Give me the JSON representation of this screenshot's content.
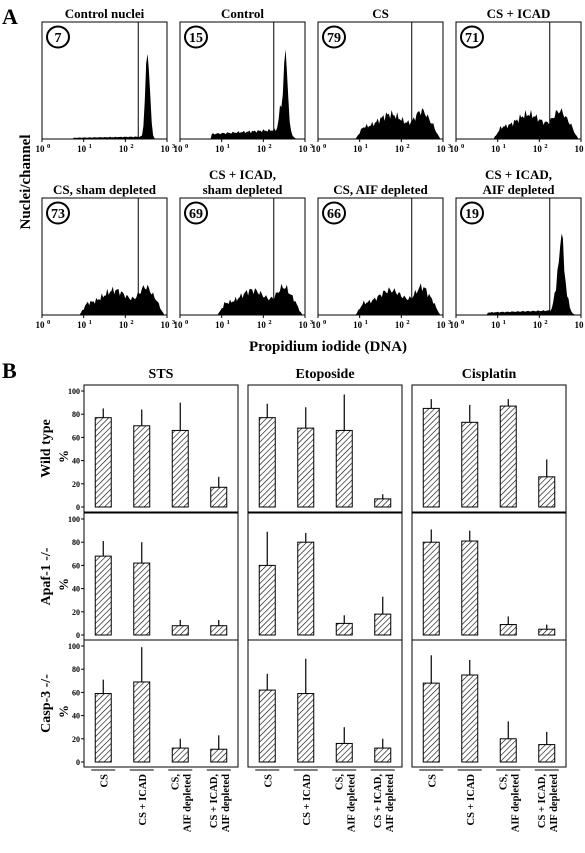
{
  "panel_a_letter": "A",
  "panel_b_letter": "B",
  "panel_a": {
    "ylabel": "Nuclei/channel",
    "xlabel": "Propidium iodide (DNA)",
    "x_ticks": [
      {
        "base": "10",
        "exp": "0"
      },
      {
        "base": "10",
        "exp": "1"
      },
      {
        "base": "10",
        "exp": "2"
      },
      {
        "base": "10",
        "exp": "3"
      }
    ]
  },
  "panel_b": {
    "ylabel_unit": "%",
    "y_ticks": [
      "0",
      "20",
      "40",
      "60",
      "80",
      "100"
    ],
    "categories": [
      "CS",
      "CS + ICAD",
      "CS, AIF depleted",
      "CS + ICAD, AIF depleted"
    ]
  },
  "chart_data": [
    {
      "type": "histogram",
      "xscale": "log",
      "xlim": [
        1,
        1000
      ],
      "xlabel": "Propidium iodide (DNA)",
      "ylabel": "Nuclei/channel",
      "panels": [
        {
          "title": [
            "Control nuclei"
          ],
          "circled_value": 7,
          "profile": "normal"
        },
        {
          "title": [
            "Control"
          ],
          "circled_value": 15,
          "profile": "normal_tail"
        },
        {
          "title": [
            "CS"
          ],
          "circled_value": 79,
          "profile": "hypodiploid"
        },
        {
          "title": [
            "CS + ICAD"
          ],
          "circled_value": 71,
          "profile": "hypodiploid"
        },
        {
          "title": [
            "CS, sham depleted"
          ],
          "circled_value": 73,
          "profile": "hypodiploid"
        },
        {
          "title": [
            "CS + ICAD,",
            "sham depleted"
          ],
          "circled_value": 69,
          "profile": "hypodiploid"
        },
        {
          "title": [
            "CS,  AIF depleted"
          ],
          "circled_value": 66,
          "profile": "hypodiploid"
        },
        {
          "title": [
            "CS + ICAD,",
            "AIF depleted"
          ],
          "circled_value": 19,
          "profile": "recovered"
        }
      ]
    },
    {
      "type": "bar",
      "ylabel": "%",
      "ylim": [
        0,
        100
      ],
      "categories": [
        "CS",
        "CS + ICAD",
        "CS, AIF depleted",
        "CS + ICAD, AIF depleted"
      ],
      "columns": [
        "STS",
        "Etoposide",
        "Cisplatin"
      ],
      "rows": [
        "Wild type",
        "Apaf-1 -/-",
        "Casp-3 -/-"
      ],
      "values": [
        [
          [
            77,
            70,
            66,
            17
          ],
          [
            77,
            68,
            66,
            7
          ],
          [
            85,
            73,
            87,
            26
          ]
        ],
        [
          [
            68,
            62,
            8,
            8
          ],
          [
            60,
            80,
            10,
            18
          ],
          [
            80,
            81,
            9,
            5
          ]
        ],
        [
          [
            59,
            69,
            12,
            11
          ],
          [
            62,
            59,
            16,
            12
          ],
          [
            68,
            75,
            20,
            15
          ]
        ]
      ],
      "errors": [
        [
          [
            8,
            14,
            24,
            9
          ],
          [
            12,
            18,
            31,
            4
          ],
          [
            8,
            15,
            6,
            15
          ]
        ],
        [
          [
            13,
            18,
            5,
            5
          ],
          [
            29,
            8,
            7,
            15
          ],
          [
            11,
            9,
            7,
            4
          ]
        ],
        [
          [
            12,
            30,
            8,
            12
          ],
          [
            14,
            30,
            14,
            8
          ],
          [
            24,
            13,
            15,
            11
          ]
        ]
      ]
    }
  ]
}
